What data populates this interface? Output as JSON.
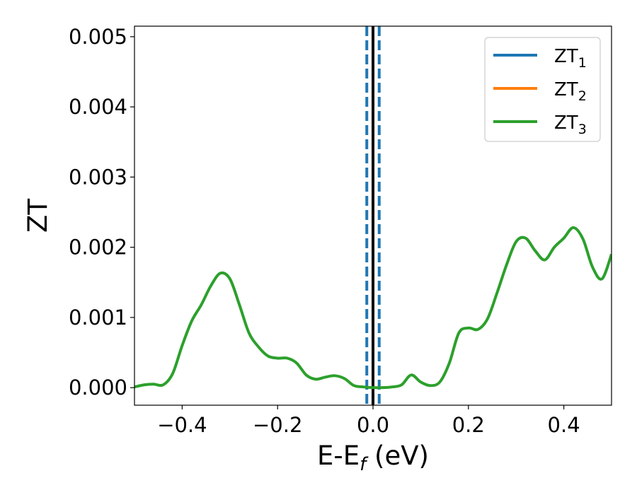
{
  "chart_data": {
    "type": "line",
    "xlabel": {
      "main": "E-E",
      "sub": "f",
      "unit": " (eV)"
    },
    "ylabel": "ZT",
    "xlim": [
      -0.5,
      0.5
    ],
    "ylim": [
      -0.00025,
      0.00515
    ],
    "xticks": [
      {
        "value": -0.4,
        "label": "−0.4"
      },
      {
        "value": -0.2,
        "label": "−0.2"
      },
      {
        "value": 0.0,
        "label": "0.0"
      },
      {
        "value": 0.2,
        "label": "0.2"
      },
      {
        "value": 0.4,
        "label": "0.4"
      }
    ],
    "yticks": [
      {
        "value": 0.0,
        "label": "0.000"
      },
      {
        "value": 0.001,
        "label": "0.001"
      },
      {
        "value": 0.002,
        "label": "0.002"
      },
      {
        "value": 0.003,
        "label": "0.003"
      },
      {
        "value": 0.004,
        "label": "0.004"
      },
      {
        "value": 0.005,
        "label": "0.005"
      }
    ],
    "grid": false,
    "legend": {
      "placement": "top-right"
    },
    "series": [
      {
        "name": "ZT",
        "sub": "1",
        "color": "#1f77b4",
        "x": [],
        "y": []
      },
      {
        "name": "ZT",
        "sub": "2",
        "color": "#ff7f0e",
        "x": [],
        "y": []
      },
      {
        "name": "ZT",
        "sub": "3",
        "color": "#2ca02c",
        "x": [
          -0.5,
          -0.48,
          -0.46,
          -0.44,
          -0.42,
          -0.4,
          -0.38,
          -0.36,
          -0.34,
          -0.32,
          -0.3,
          -0.28,
          -0.26,
          -0.24,
          -0.22,
          -0.2,
          -0.18,
          -0.16,
          -0.14,
          -0.12,
          -0.1,
          -0.08,
          -0.06,
          -0.04,
          -0.02,
          0.0,
          0.02,
          0.04,
          0.06,
          0.08,
          0.1,
          0.12,
          0.14,
          0.16,
          0.18,
          0.2,
          0.22,
          0.24,
          0.26,
          0.28,
          0.3,
          0.32,
          0.34,
          0.36,
          0.38,
          0.4,
          0.42,
          0.44,
          0.46,
          0.48,
          0.5
        ],
        "y": [
          1e-05,
          4e-05,
          5e-05,
          4e-05,
          0.0002,
          0.0006,
          0.00095,
          0.00118,
          0.00145,
          0.00163,
          0.00155,
          0.00118,
          0.00078,
          0.00058,
          0.00045,
          0.00042,
          0.00042,
          0.00035,
          0.00018,
          0.00012,
          0.00015,
          0.00017,
          0.00013,
          3e-05,
          1e-05,
          0.0,
          0.0,
          1e-05,
          4e-05,
          0.00018,
          8e-05,
          3e-05,
          8e-05,
          0.00035,
          0.00078,
          0.00085,
          0.00083,
          0.00098,
          0.00135,
          0.00175,
          0.00208,
          0.00213,
          0.00195,
          0.00182,
          0.002,
          0.00213,
          0.00228,
          0.00212,
          0.00172,
          0.00155,
          0.0019
        ]
      }
    ],
    "vlines": [
      {
        "x": -0.013,
        "color": "#1f77b4",
        "style": "dashed"
      },
      {
        "x": 0.0,
        "color": "#000000",
        "style": "solid"
      },
      {
        "x": 0.013,
        "color": "#1f77b4",
        "style": "dashed"
      }
    ]
  }
}
